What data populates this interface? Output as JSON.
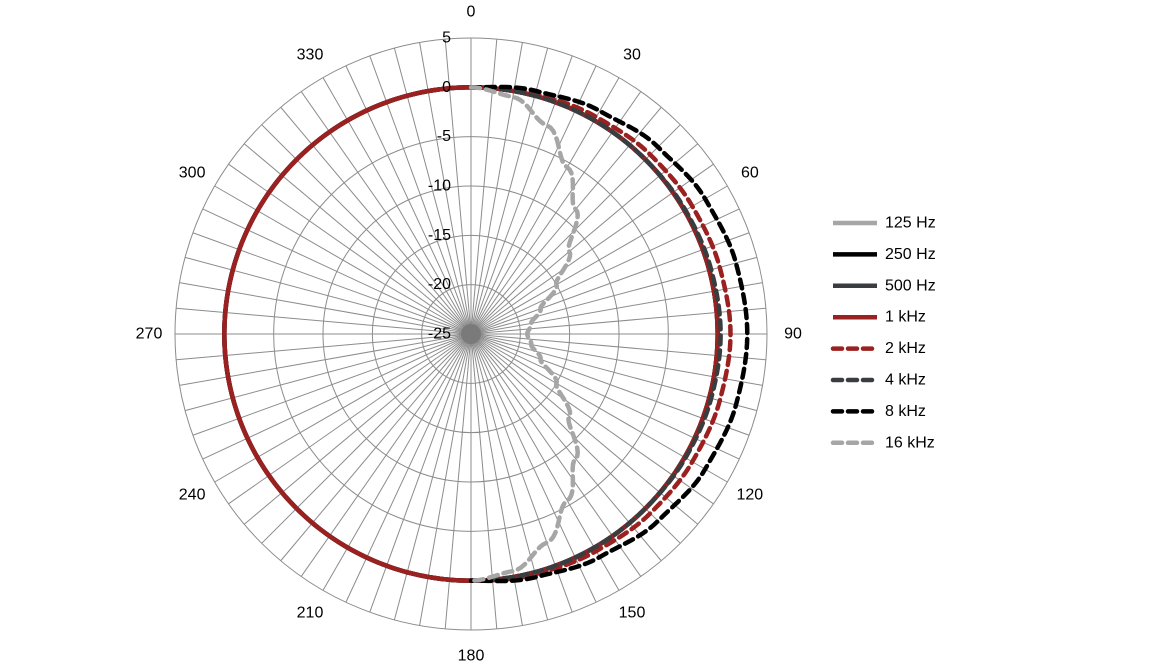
{
  "chart_data": {
    "type": "polar",
    "title": "",
    "r_axis": {
      "min": -25,
      "max": 5,
      "ticks": [
        5,
        0,
        -5,
        -10,
        -15,
        -20,
        -25
      ]
    },
    "angle_axis": {
      "step_deg": 5,
      "labels": [
        "0",
        "30",
        "60",
        "90",
        "120",
        "150",
        "180",
        "210",
        "240",
        "270",
        "300",
        "330"
      ]
    },
    "grid": true,
    "legend_position": "right",
    "series": [
      {
        "name": "125 Hz",
        "color": "#a6a6a6",
        "dash": "solid",
        "points": [
          [
            0,
            0
          ],
          [
            90,
            0
          ],
          [
            180,
            0
          ],
          [
            270,
            0
          ],
          [
            360,
            0
          ]
        ]
      },
      {
        "name": "250 Hz",
        "color": "#000000",
        "dash": "solid",
        "points": [
          [
            0,
            0
          ],
          [
            90,
            0
          ],
          [
            180,
            0
          ],
          [
            270,
            0
          ],
          [
            360,
            0
          ]
        ]
      },
      {
        "name": "500 Hz",
        "color": "#3a3d40",
        "dash": "solid",
        "points": [
          [
            0,
            0
          ],
          [
            90,
            0
          ],
          [
            180,
            0
          ],
          [
            270,
            0
          ],
          [
            360,
            0
          ]
        ]
      },
      {
        "name": "1 kHz",
        "color": "#9b2020",
        "dash": "solid",
        "points": [
          [
            0,
            0
          ],
          [
            90,
            0
          ],
          [
            180,
            0
          ],
          [
            270,
            0
          ],
          [
            360,
            0
          ]
        ]
      },
      {
        "name": "2 kHz",
        "color": "#9b2020",
        "dash": "dashed",
        "points": [
          [
            0,
            0
          ],
          [
            15,
            0.2
          ],
          [
            30,
            0.4
          ],
          [
            45,
            0.7
          ],
          [
            60,
            0.9
          ],
          [
            75,
            1.1
          ],
          [
            90,
            1.3
          ],
          [
            105,
            1.1
          ],
          [
            120,
            0.9
          ],
          [
            135,
            0.7
          ],
          [
            150,
            0.4
          ],
          [
            165,
            0.2
          ],
          [
            180,
            0
          ]
        ]
      },
      {
        "name": "4 kHz",
        "color": "#3a3d40",
        "dash": "dashed",
        "points": [
          [
            0,
            0
          ],
          [
            15,
            0
          ],
          [
            30,
            0
          ],
          [
            45,
            0
          ],
          [
            60,
            0.1
          ],
          [
            75,
            0.2
          ],
          [
            90,
            0.3
          ],
          [
            105,
            0.2
          ],
          [
            120,
            0.1
          ],
          [
            135,
            0
          ],
          [
            150,
            0
          ],
          [
            165,
            0
          ],
          [
            180,
            0
          ]
        ]
      },
      {
        "name": "8 kHz",
        "color": "#000000",
        "dash": "dashed",
        "points": [
          [
            0,
            0
          ],
          [
            15,
            0.5
          ],
          [
            30,
            1.1
          ],
          [
            45,
            1.8
          ],
          [
            60,
            2.4
          ],
          [
            75,
            2.8
          ],
          [
            90,
            3.0
          ],
          [
            105,
            2.8
          ],
          [
            120,
            2.4
          ],
          [
            135,
            1.8
          ],
          [
            150,
            1.1
          ],
          [
            165,
            0.5
          ],
          [
            180,
            0
          ]
        ]
      },
      {
        "name": "16 kHz",
        "color": "#a6a6a6",
        "dash": "dashed",
        "points": [
          [
            0,
            0
          ],
          [
            10,
            -0.6
          ],
          [
            20,
            -2.5
          ],
          [
            30,
            -5.5
          ],
          [
            40,
            -8.5
          ],
          [
            50,
            -12
          ],
          [
            60,
            -15
          ],
          [
            70,
            -17.5
          ],
          [
            80,
            -18.8
          ],
          [
            90,
            -19.3
          ],
          [
            100,
            -18.8
          ],
          [
            110,
            -17.5
          ],
          [
            120,
            -15
          ],
          [
            130,
            -12
          ],
          [
            140,
            -8.5
          ],
          [
            150,
            -5.5
          ],
          [
            160,
            -2.5
          ],
          [
            170,
            -0.6
          ],
          [
            180,
            0
          ]
        ]
      }
    ]
  }
}
